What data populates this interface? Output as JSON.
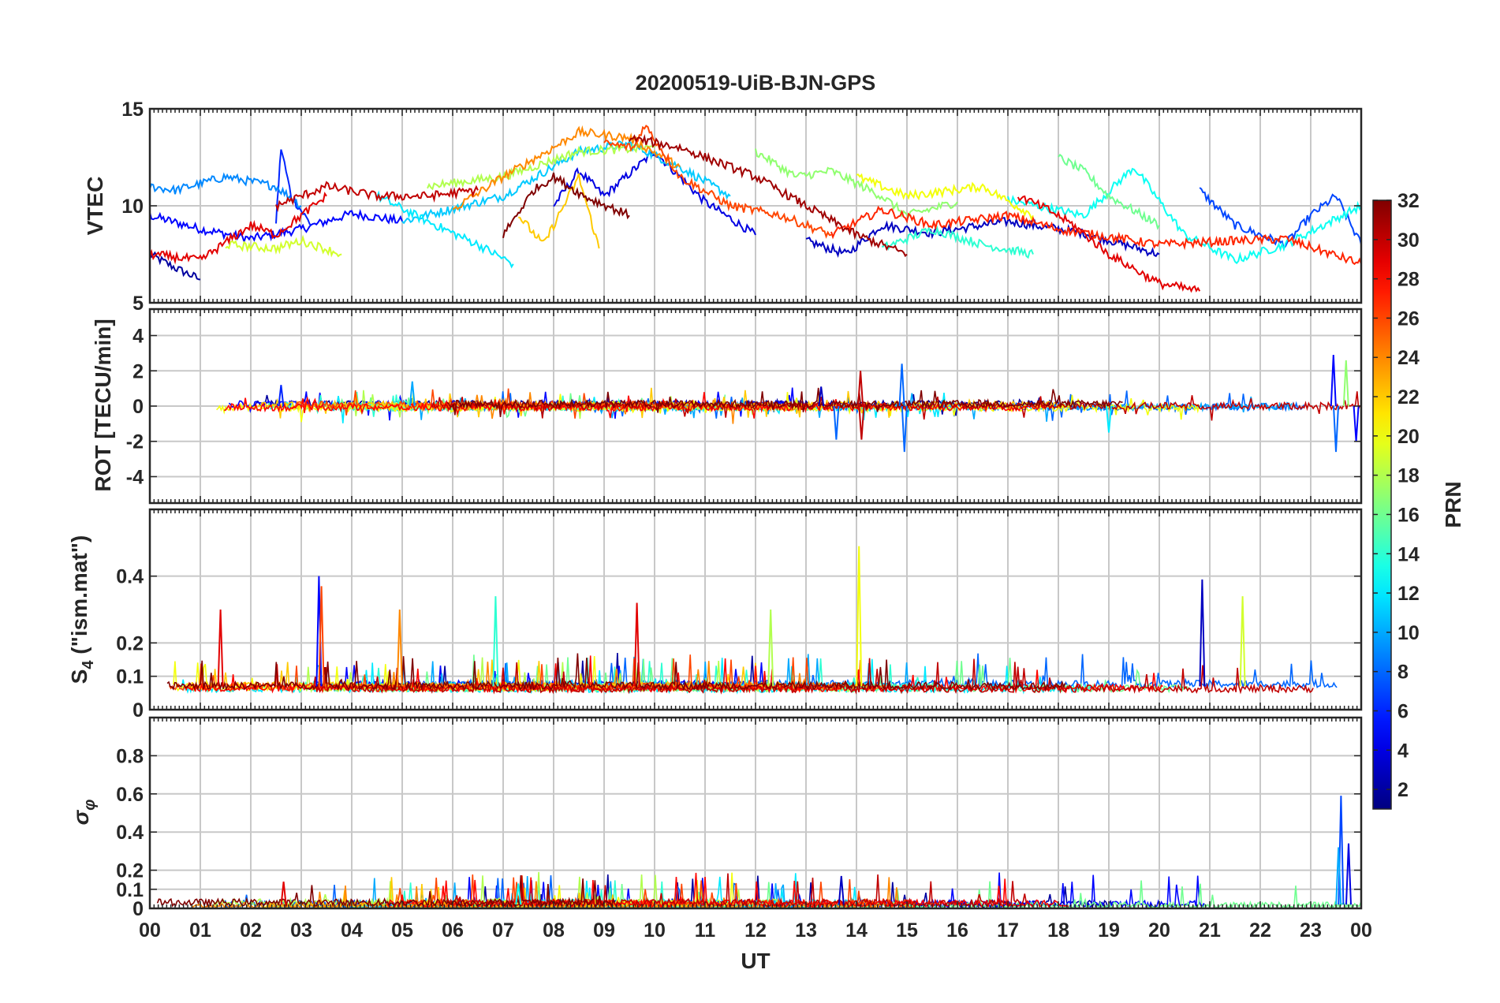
{
  "chart_data": {
    "type": "line",
    "title": "20200519-UiB-BJN-GPS",
    "xlabel": "UT",
    "x_unit": "hours",
    "xlim": [
      0,
      24
    ],
    "xticks": [
      0,
      1,
      2,
      3,
      4,
      5,
      6,
      7,
      8,
      9,
      10,
      11,
      12,
      13,
      14,
      15,
      16,
      17,
      18,
      19,
      20,
      21,
      22,
      23,
      24
    ],
    "xtick_labels": [
      "00",
      "01",
      "02",
      "03",
      "04",
      "05",
      "06",
      "07",
      "08",
      "09",
      "10",
      "11",
      "12",
      "13",
      "14",
      "15",
      "16",
      "17",
      "18",
      "19",
      "20",
      "21",
      "22",
      "23",
      "00"
    ],
    "grid": true,
    "panels": [
      {
        "name": "vtec",
        "ylabel": "VTEC",
        "ylim": [
          5,
          15
        ],
        "yticks": [
          5,
          10,
          15
        ],
        "ytick_labels": [
          "5",
          "10",
          "15"
        ],
        "series": [
          {
            "prn": 2,
            "x": [
              0,
              0.5,
              1.0
            ],
            "y": [
              7.5,
              6.8,
              6.2
            ]
          },
          {
            "prn": 5,
            "x": [
              0,
              1,
              2,
              3,
              4,
              5
            ],
            "y": [
              9.5,
              8.8,
              8.3,
              8.8,
              9.6,
              9.2
            ]
          },
          {
            "prn": 6,
            "x": [
              2.5,
              2.6,
              2.8,
              3.2
            ],
            "y": [
              9.2,
              13.0,
              10.5,
              9.0
            ]
          },
          {
            "prn": 4,
            "x": [
              8.0,
              8.5,
              9.0,
              10.0,
              11.0,
              12.0
            ],
            "y": [
              10.0,
              11.8,
              10.5,
              12.8,
              10.2,
              8.5
            ]
          },
          {
            "prn": 3,
            "x": [
              13.0,
              13.8,
              14.5,
              15.5,
              17.0,
              18.5,
              20.0
            ],
            "y": [
              8.2,
              7.5,
              9.0,
              8.6,
              9.2,
              8.6,
              7.5
            ]
          },
          {
            "prn": 7,
            "x": [
              20.8,
              21.5,
              22.5,
              23.0,
              23.5,
              24.0
            ],
            "y": [
              10.8,
              9.0,
              8.0,
              9.5,
              10.5,
              8.0
            ]
          },
          {
            "prn": 9,
            "x": [
              0,
              0.5,
              1.5,
              2.5,
              3.0
            ],
            "y": [
              11.0,
              10.8,
              11.5,
              11.0,
              10.0
            ]
          },
          {
            "prn": 11,
            "x": [
              5.0,
              7.0,
              8.5,
              9.5,
              10.5,
              11.5
            ],
            "y": [
              9.2,
              10.5,
              12.8,
              13.2,
              12.0,
              10.5
            ]
          },
          {
            "prn": 12,
            "x": [
              4.5,
              5.5,
              6.5,
              7.2
            ],
            "y": [
              10.5,
              9.2,
              8.0,
              7.0
            ]
          },
          {
            "prn": 13,
            "x": [
              17.0,
              18.5,
              19.5,
              20.5,
              21.5,
              22.5,
              24.0
            ],
            "y": [
              10.3,
              9.5,
              12.0,
              8.5,
              7.2,
              8.0,
              10.0
            ]
          },
          {
            "prn": 14,
            "x": [
              14.5,
              15.5,
              16.5,
              17.5
            ],
            "y": [
              7.8,
              8.8,
              8.0,
              7.5
            ]
          },
          {
            "prn": 16,
            "x": [
              18.0,
              18.5,
              19.0,
              20.0
            ],
            "y": [
              12.5,
              11.8,
              10.5,
              9.0
            ]
          },
          {
            "prn": 17,
            "x": [
              12.0,
              12.8,
              13.5,
              14.5,
              15.0,
              16.0
            ],
            "y": [
              12.8,
              11.5,
              11.8,
              10.5,
              9.5,
              10.2
            ]
          },
          {
            "prn": 18,
            "x": [
              5.5,
              7.0,
              8.5,
              10.0
            ],
            "y": [
              11.0,
              11.5,
              12.8,
              13.0
            ]
          },
          {
            "prn": 19,
            "x": [
              1.5,
              2.5,
              3.0,
              3.8
            ],
            "y": [
              8.0,
              7.8,
              8.2,
              7.5
            ]
          },
          {
            "prn": 20,
            "x": [
              14.0,
              15.0,
              16.5,
              17.5
            ],
            "y": [
              11.5,
              10.5,
              11.0,
              9.5
            ]
          },
          {
            "prn": 22,
            "x": [
              7.3,
              7.8,
              8.5,
              8.9
            ],
            "y": [
              9.5,
              8.0,
              11.5,
              7.8
            ]
          },
          {
            "prn": 24,
            "x": [
              6.0,
              7.0,
              8.0,
              8.5,
              9.5,
              10.5
            ],
            "y": [
              9.8,
              11.5,
              13.0,
              13.8,
              13.5,
              12.0
            ]
          },
          {
            "prn": 26,
            "x": [
              9.0,
              9.6,
              9.8,
              10.5,
              11.5,
              12.5,
              13.5
            ],
            "y": [
              13.2,
              13.0,
              14.2,
              11.5,
              10.0,
              9.5,
              8.5
            ]
          },
          {
            "prn": 27,
            "x": [
              13.5,
              14.5,
              15.5,
              17.0,
              18.0,
              20.0,
              21.5,
              22.5,
              24.0
            ],
            "y": [
              8.5,
              9.8,
              9.0,
              9.5,
              8.8,
              8.0,
              8.2,
              8.3,
              7.0
            ]
          },
          {
            "prn": 29,
            "x": [
              0,
              1.0,
              2.0,
              2.5,
              3.5
            ],
            "y": [
              7.5,
              7.2,
              9.0,
              8.5,
              10.5
            ]
          },
          {
            "prn": 30,
            "x": [
              2.5,
              3.5,
              4.5,
              5.5,
              6.5
            ],
            "y": [
              10.0,
              11.0,
              10.5,
              10.5,
              10.8
            ]
          },
          {
            "prn": 31,
            "x": [
              9.5,
              10.5,
              11.0,
              12.0,
              13.0,
              14.0,
              15.0
            ],
            "y": [
              13.5,
              13.0,
              12.5,
              11.5,
              10.0,
              8.5,
              7.5
            ]
          },
          {
            "prn": 32,
            "x": [
              7.0,
              7.6,
              8.0,
              8.6,
              9.5
            ],
            "y": [
              8.5,
              10.8,
              11.5,
              10.5,
              9.5
            ]
          },
          {
            "prn": 29,
            "x": [
              17.2,
              17.8,
              18.3,
              19.0,
              20.0,
              20.8
            ],
            "y": [
              10.5,
              9.8,
              9.0,
              7.5,
              6.0,
              5.6
            ]
          }
        ]
      },
      {
        "name": "rot",
        "ylabel": "ROT [TECU/min]",
        "ylim": [
          -5.5,
          5.5
        ],
        "yticks": [
          -4,
          -2,
          0,
          2,
          4
        ],
        "ytick_labels": [
          "-4",
          "-2",
          "0",
          "2",
          "4"
        ],
        "spikes": [
          {
            "prn": 6,
            "x": 2.6,
            "y": 1.2
          },
          {
            "prn": 10,
            "x": 5.2,
            "y": 1.4
          },
          {
            "prn": 3,
            "x": 13.3,
            "y": 1.1
          },
          {
            "prn": 30,
            "x": 14.08,
            "y": 2.0
          },
          {
            "prn": 30,
            "x": 14.1,
            "y": -1.9
          },
          {
            "prn": 8,
            "x": 14.9,
            "y": 2.4
          },
          {
            "prn": 8,
            "x": 14.95,
            "y": -2.6
          },
          {
            "prn": 8,
            "x": 13.6,
            "y": -1.9
          },
          {
            "prn": 12,
            "x": 19.0,
            "y": -1.5
          },
          {
            "prn": 5,
            "x": 23.45,
            "y": 2.9
          },
          {
            "prn": 8,
            "x": 23.5,
            "y": -2.6
          },
          {
            "prn": 17,
            "x": 23.7,
            "y": 2.6
          },
          {
            "prn": 5,
            "x": 23.9,
            "y": -2.0
          }
        ]
      },
      {
        "name": "s4",
        "ylabel": "S4 (\"ism.mat\")",
        "ylabel_main": "S",
        "ylabel_sub": "4",
        "ylabel_rest": " (\"ism.mat\")",
        "ylim": [
          0,
          0.6
        ],
        "yticks": [
          0,
          0.1,
          0.2,
          0.4
        ],
        "ytick_labels": [
          "0",
          "0.1",
          "0.2",
          "0.4"
        ],
        "baseline": 0.07,
        "spikes": [
          {
            "prn": 29,
            "x": 1.4,
            "y": 0.3
          },
          {
            "prn": 5,
            "x": 3.35,
            "y": 0.4
          },
          {
            "prn": 26,
            "x": 3.4,
            "y": 0.37
          },
          {
            "prn": 24,
            "x": 4.95,
            "y": 0.3
          },
          {
            "prn": 14,
            "x": 6.85,
            "y": 0.34
          },
          {
            "prn": 29,
            "x": 9.65,
            "y": 0.32
          },
          {
            "prn": 18,
            "x": 12.3,
            "y": 0.3
          },
          {
            "prn": 20,
            "x": 14.05,
            "y": 0.49
          },
          {
            "prn": 3,
            "x": 20.85,
            "y": 0.39
          },
          {
            "prn": 19,
            "x": 21.65,
            "y": 0.34
          }
        ]
      },
      {
        "name": "sigma_phi",
        "ylabel": "σφ",
        "ylabel_main": "σ",
        "ylabel_sub": "φ",
        "ylim": [
          0,
          1
        ],
        "yticks": [
          0,
          0.1,
          0.2,
          0.4,
          0.6,
          0.8
        ],
        "ytick_labels": [
          "0",
          "0.1",
          "0.2",
          "0.4",
          "0.6",
          "0.8"
        ],
        "baseline": 0.02,
        "spikes": [
          {
            "prn": 29,
            "x": 2.65,
            "y": 0.14
          },
          {
            "prn": 13,
            "x": 7.3,
            "y": 0.13
          },
          {
            "prn": 3,
            "x": 13.7,
            "y": 0.17
          },
          {
            "prn": 7,
            "x": 23.6,
            "y": 0.59
          },
          {
            "prn": 10,
            "x": 23.55,
            "y": 0.32
          },
          {
            "prn": 4,
            "x": 23.75,
            "y": 0.34
          }
        ]
      }
    ],
    "colorbar": {
      "label": "PRN",
      "range": [
        1,
        32
      ],
      "ticks": [
        2,
        4,
        6,
        8,
        10,
        12,
        14,
        16,
        18,
        20,
        22,
        24,
        26,
        28,
        30,
        32
      ],
      "tick_labels": [
        "2",
        "4",
        "6",
        "8",
        "10",
        "12",
        "14",
        "16",
        "18",
        "20",
        "22",
        "24",
        "26",
        "28",
        "30",
        "32"
      ],
      "colormap": "jet"
    }
  }
}
